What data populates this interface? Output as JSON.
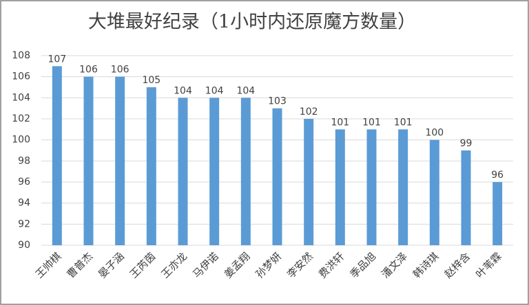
{
  "chart_data": {
    "type": "bar",
    "title": "大堆最好纪录（1小时内还原魔方数量）",
    "categories": [
      "王帅棋",
      "曹普杰",
      "晏子涵",
      "王芮茵",
      "王亦龙",
      "马伊诺",
      "姜孟翔",
      "孙梦妍",
      "李安然",
      "费洪轩",
      "季品旭",
      "潘文泽",
      "韩诗琪",
      "赵梓含",
      "叶苇霖"
    ],
    "values": [
      107,
      106,
      106,
      105,
      104,
      104,
      104,
      103,
      102,
      101,
      101,
      101,
      100,
      99,
      96
    ],
    "color": "#5b9bd5",
    "ylim": [
      90,
      108
    ],
    "yticks": [
      90,
      92,
      94,
      96,
      98,
      100,
      102,
      104,
      106,
      108
    ],
    "grid": true
  }
}
